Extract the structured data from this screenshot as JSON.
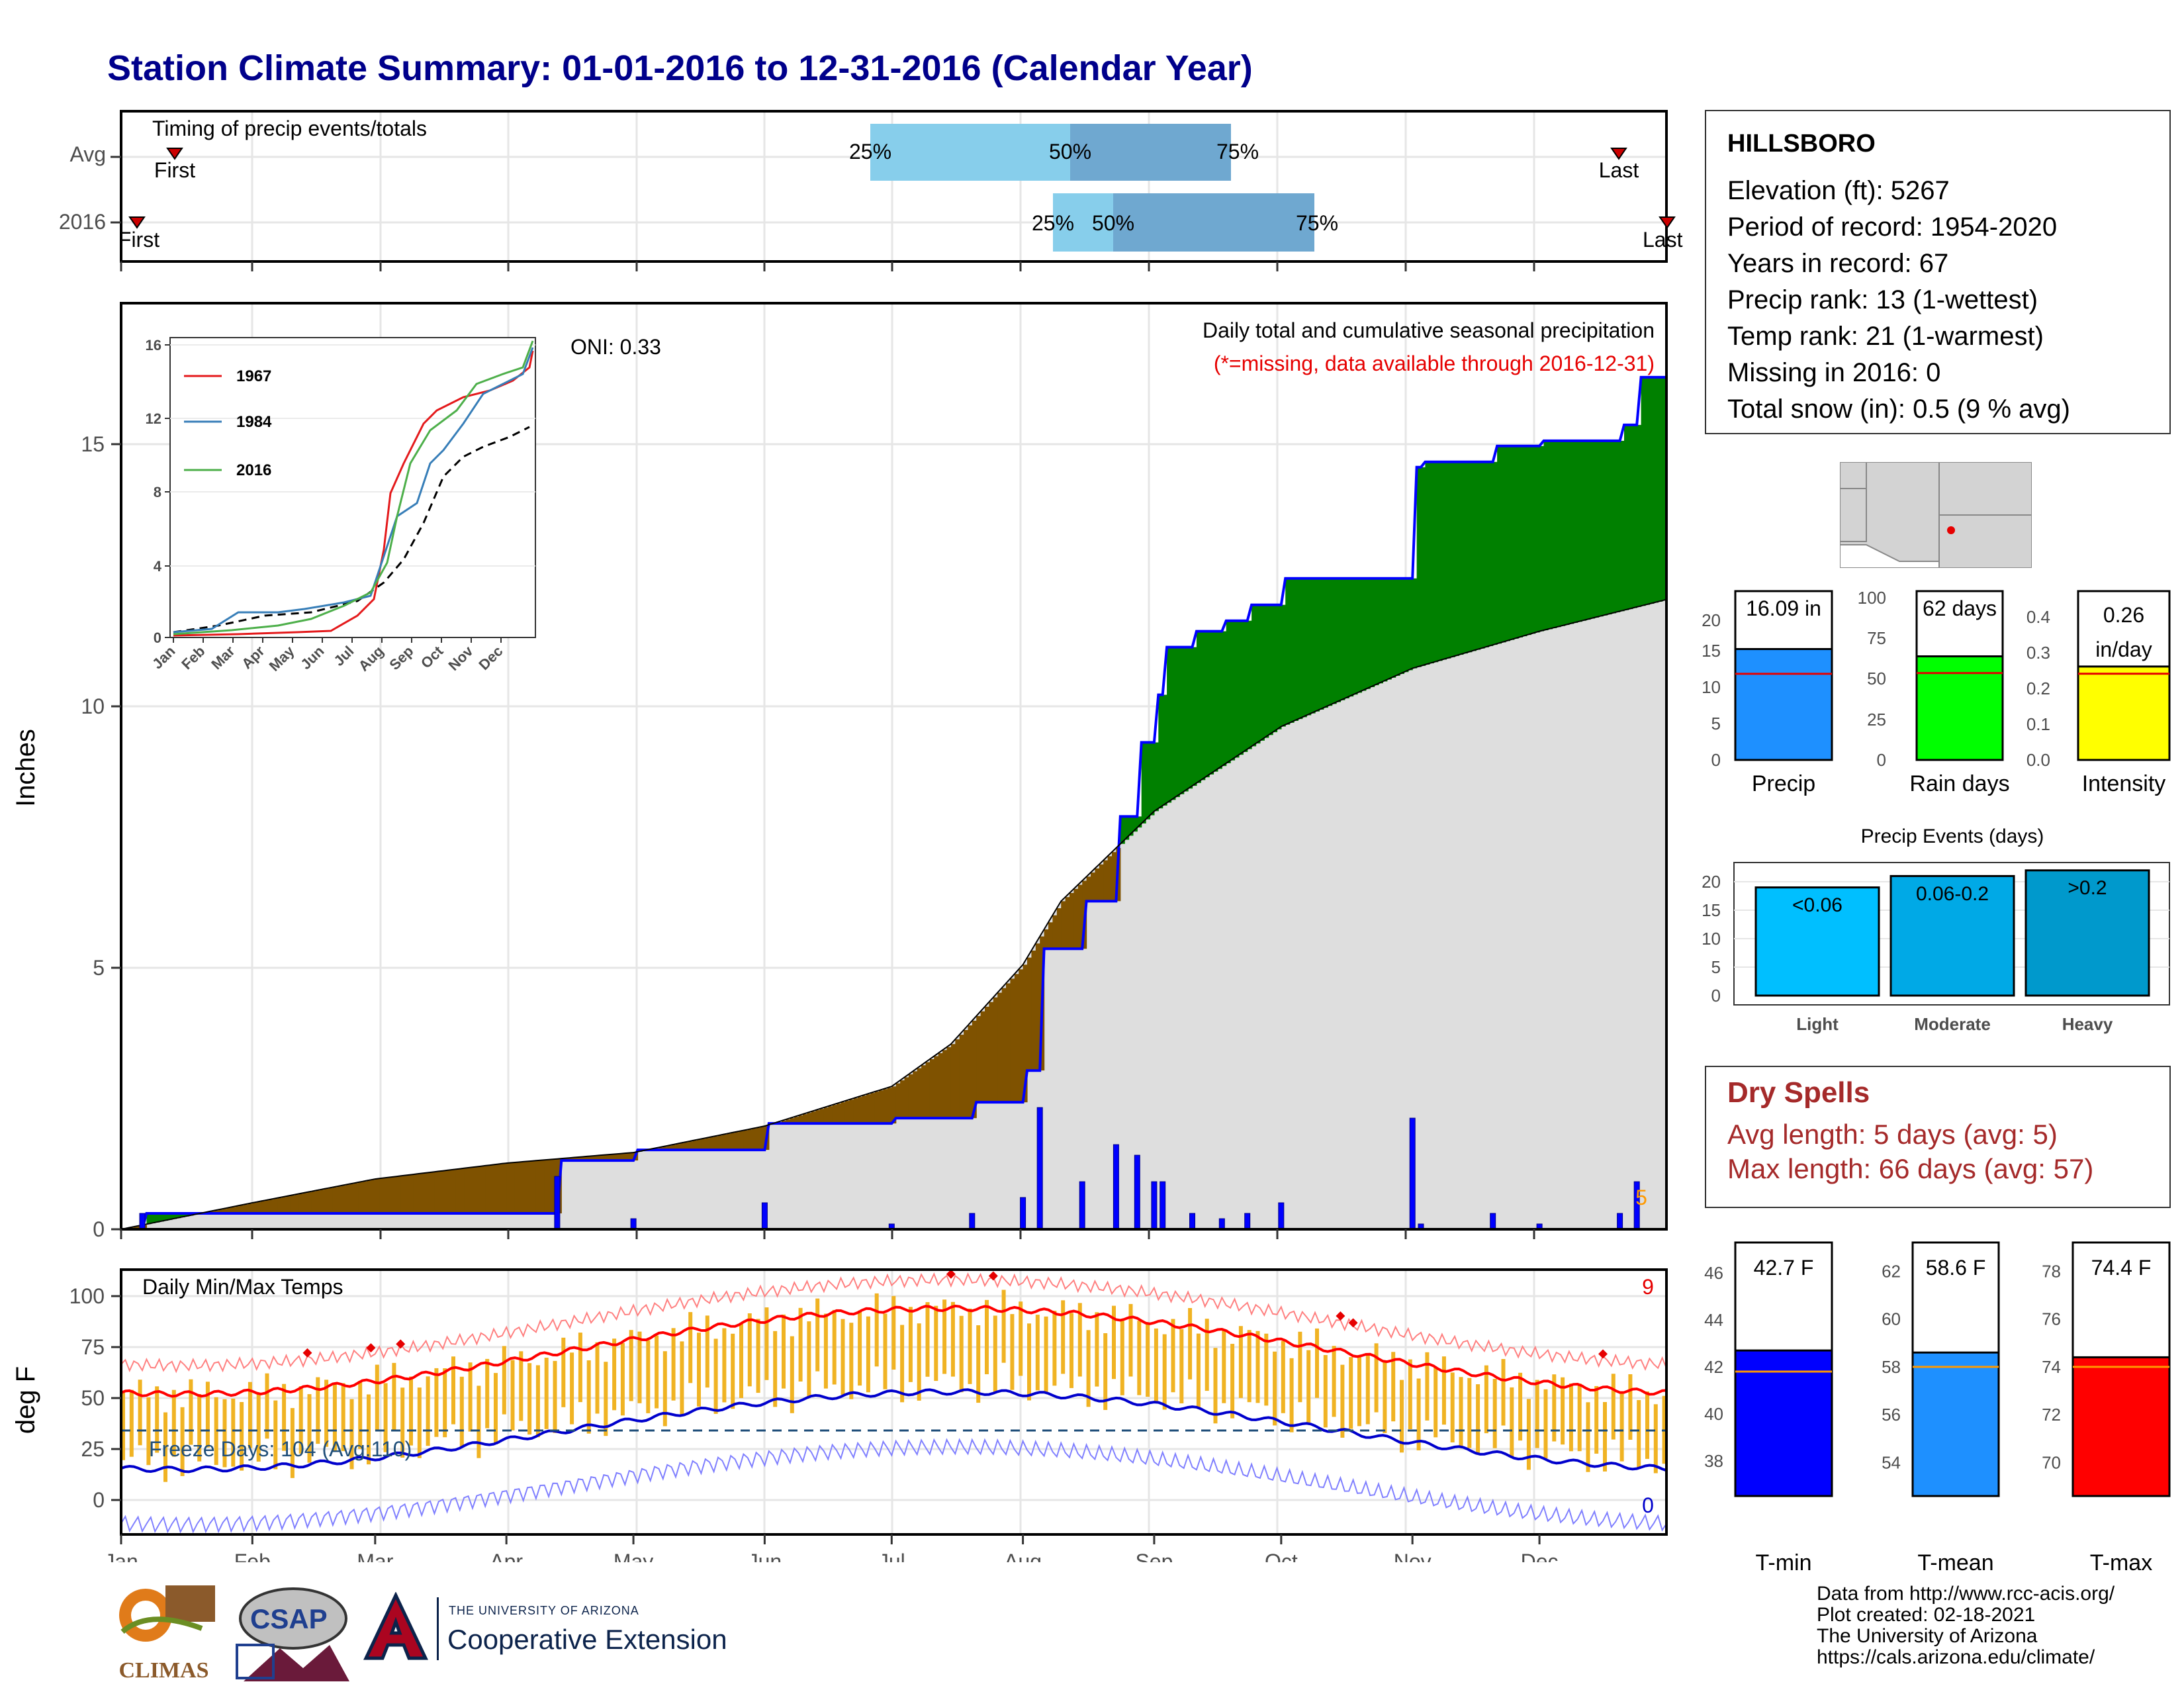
{
  "title": "Station Climate Summary: 01-01-2016 to 12-31-2016 (Calendar Year)",
  "months": [
    "Jan",
    "Feb",
    "Mar",
    "Apr",
    "May",
    "Jun",
    "Jul",
    "Aug",
    "Sep",
    "Oct",
    "Nov",
    "Dec"
  ],
  "timing": {
    "title": "Timing of precip events/totals",
    "row_labels": [
      "Avg",
      "2016"
    ],
    "avg": {
      "first_label": "First",
      "last_label": "Last",
      "p25": "25%",
      "p50": "50%",
      "p75": "75%"
    },
    "y2016": {
      "first_label": "First",
      "last_label": "Last",
      "p25": "25%",
      "p50": "50%",
      "p75": "75%"
    }
  },
  "precip_panel": {
    "ylabel": "Inches",
    "oni": "ONI: 0.33",
    "caption": "Daily total and cumulative seasonal precipitation",
    "missing_note": "(*=missing, data available through 2016-12-31)",
    "y_ticks": [
      "0",
      "5",
      "10",
      "15"
    ],
    "extreme_count": "5"
  },
  "inset": {
    "y_ticks": [
      "0",
      "4",
      "8",
      "12",
      "16"
    ],
    "x_ticks": [
      "Jan",
      "Feb",
      "Mar",
      "Apr",
      "May",
      "Jun",
      "Jul",
      "Aug",
      "Sep",
      "Oct",
      "Nov",
      "Dec"
    ],
    "legend": [
      {
        "name": "1967",
        "color": "#e41a1c"
      },
      {
        "name": "1984",
        "color": "#377eb8"
      },
      {
        "name": "2016",
        "color": "#4daf4a"
      }
    ]
  },
  "temp_panel": {
    "ylabel": "deg F",
    "title": "Daily Min/Max Temps",
    "freeze_text": "Freeze Days: 104 (Avg:110)",
    "hot_count": "9",
    "cold_count": "0",
    "y_ticks": [
      "0",
      "25",
      "50",
      "75",
      "100"
    ]
  },
  "station": {
    "name": "HILLSBORO",
    "lines": [
      "Elevation (ft): 5267",
      "Period of record: 1954-2020",
      "Years in record: 67",
      "Precip rank: 13 (1-wettest)",
      "Temp rank: 21 (1-warmest)",
      "Missing in 2016: 0",
      "Total snow (in): 0.5 (9 % avg)"
    ]
  },
  "bars_top": {
    "precip": {
      "label": "Precip",
      "value_text": "16.09 in",
      "value": 16.09,
      "avg": 12.5,
      "ticks": [
        "0",
        "5",
        "10",
        "15",
        "20"
      ],
      "ymax": 24.5,
      "color": "#1e90ff"
    },
    "raindays": {
      "label": "Rain days",
      "value_text": "62 days",
      "value": 62,
      "avg": 52,
      "ticks": [
        "0",
        "25",
        "50",
        "75",
        "100"
      ],
      "ymax": 101,
      "color": "#00ff00"
    },
    "intensity": {
      "label": "Intensity",
      "value_text": "0.26",
      "value_unit": "in/day",
      "value": 0.26,
      "avg": 0.24,
      "ticks": [
        "0.0",
        "0.1",
        "0.2",
        "0.3",
        "0.4"
      ],
      "ymax": 0.47,
      "color": "#ffff00"
    }
  },
  "precip_events": {
    "title": "Precip Events (days)",
    "ticks": [
      "0",
      "5",
      "10",
      "15",
      "20"
    ],
    "bars": [
      {
        "label": "Light",
        "value_label": "<0.06",
        "value": 19,
        "color": "#00bfff"
      },
      {
        "label": "Moderate",
        "value_label": "0.06-0.2",
        "value": 21,
        "color": "#00a9e6"
      },
      {
        "label": "Heavy",
        "value_label": ">0.2",
        "value": 22,
        "color": "#0099cc"
      }
    ]
  },
  "dry_spells": {
    "title": "Dry Spells",
    "avg_line": "Avg length: 5 days (avg: 5)",
    "max_line": "Max length: 66 days (avg: 57)"
  },
  "temp_bars": {
    "tmin": {
      "label": "T-min",
      "value_text": "42.7 F",
      "value": 42.7,
      "avg": 41.8,
      "ticks": [
        "38",
        "40",
        "42",
        "44",
        "46"
      ],
      "ymin": 36.5,
      "ymax": 47.3,
      "color": "#0000ff"
    },
    "tmean": {
      "label": "T-mean",
      "value_text": "58.6 F",
      "value": 58.6,
      "avg": 58.0,
      "ticks": [
        "54",
        "56",
        "58",
        "60",
        "62"
      ],
      "ymin": 52.6,
      "ymax": 63.2,
      "color": "#1e90ff"
    },
    "tmax": {
      "label": "T-max",
      "value_text": "74.4 F",
      "value": 74.4,
      "avg": 74.0,
      "ticks": [
        "70",
        "72",
        "74",
        "76",
        "78"
      ],
      "ymin": 68.6,
      "ymax": 79.2,
      "color": "#ff0000"
    }
  },
  "footer": {
    "lines": [
      "Data from http://www.rcc-acis.org/",
      "Plot created: 02-18-2021",
      "The University of Arizona",
      "https://cals.arizona.edu/climate/"
    ],
    "logo_climas": "CLIMAS",
    "logo_csap": "CSAP",
    "logo_ua_small": "THE UNIVERSITY OF ARIZONA",
    "logo_ua_big": "Cooperative Extension"
  },
  "chart_data": {
    "type": "area",
    "ylim": [
      0,
      17.5
    ],
    "series": [
      {
        "name": "2016",
        "x": [
          "01-01",
          "01-06",
          "01-13",
          "02-01",
          "03-01",
          "04-01",
          "04-13",
          "05-01",
          "06-01",
          "07-01",
          "07-20",
          "08-01",
          "08-05",
          "08-15",
          "08-23",
          "08-28",
          "09-01",
          "09-03",
          "09-10",
          "09-17",
          "09-23",
          "10-01",
          "10-20",
          "11-01",
          "11-03",
          "11-10",
          "11-20",
          "12-01",
          "12-20",
          "12-24",
          "12-31"
        ],
        "values": [
          0.0,
          0.3,
          0.3,
          0.3,
          0.3,
          0.3,
          1.3,
          1.5,
          2.0,
          2.1,
          2.4,
          3.0,
          5.3,
          6.2,
          7.8,
          9.2,
          10.1,
          11.0,
          11.3,
          11.5,
          11.8,
          12.3,
          12.3,
          14.4,
          14.5,
          14.5,
          14.8,
          14.9,
          15.2,
          16.1,
          16.09
        ]
      },
      {
        "name": "Avg",
        "x": [
          "01-01",
          "02-01",
          "03-01",
          "04-01",
          "05-01",
          "06-01",
          "07-01",
          "07-15",
          "08-01",
          "08-10",
          "09-01",
          "10-01",
          "11-01",
          "12-01",
          "12-31"
        ],
        "values": [
          0.0,
          0.5,
          0.95,
          1.25,
          1.45,
          1.95,
          2.7,
          3.5,
          5.0,
          6.2,
          7.9,
          9.5,
          10.6,
          11.3,
          11.9
        ]
      }
    ]
  }
}
